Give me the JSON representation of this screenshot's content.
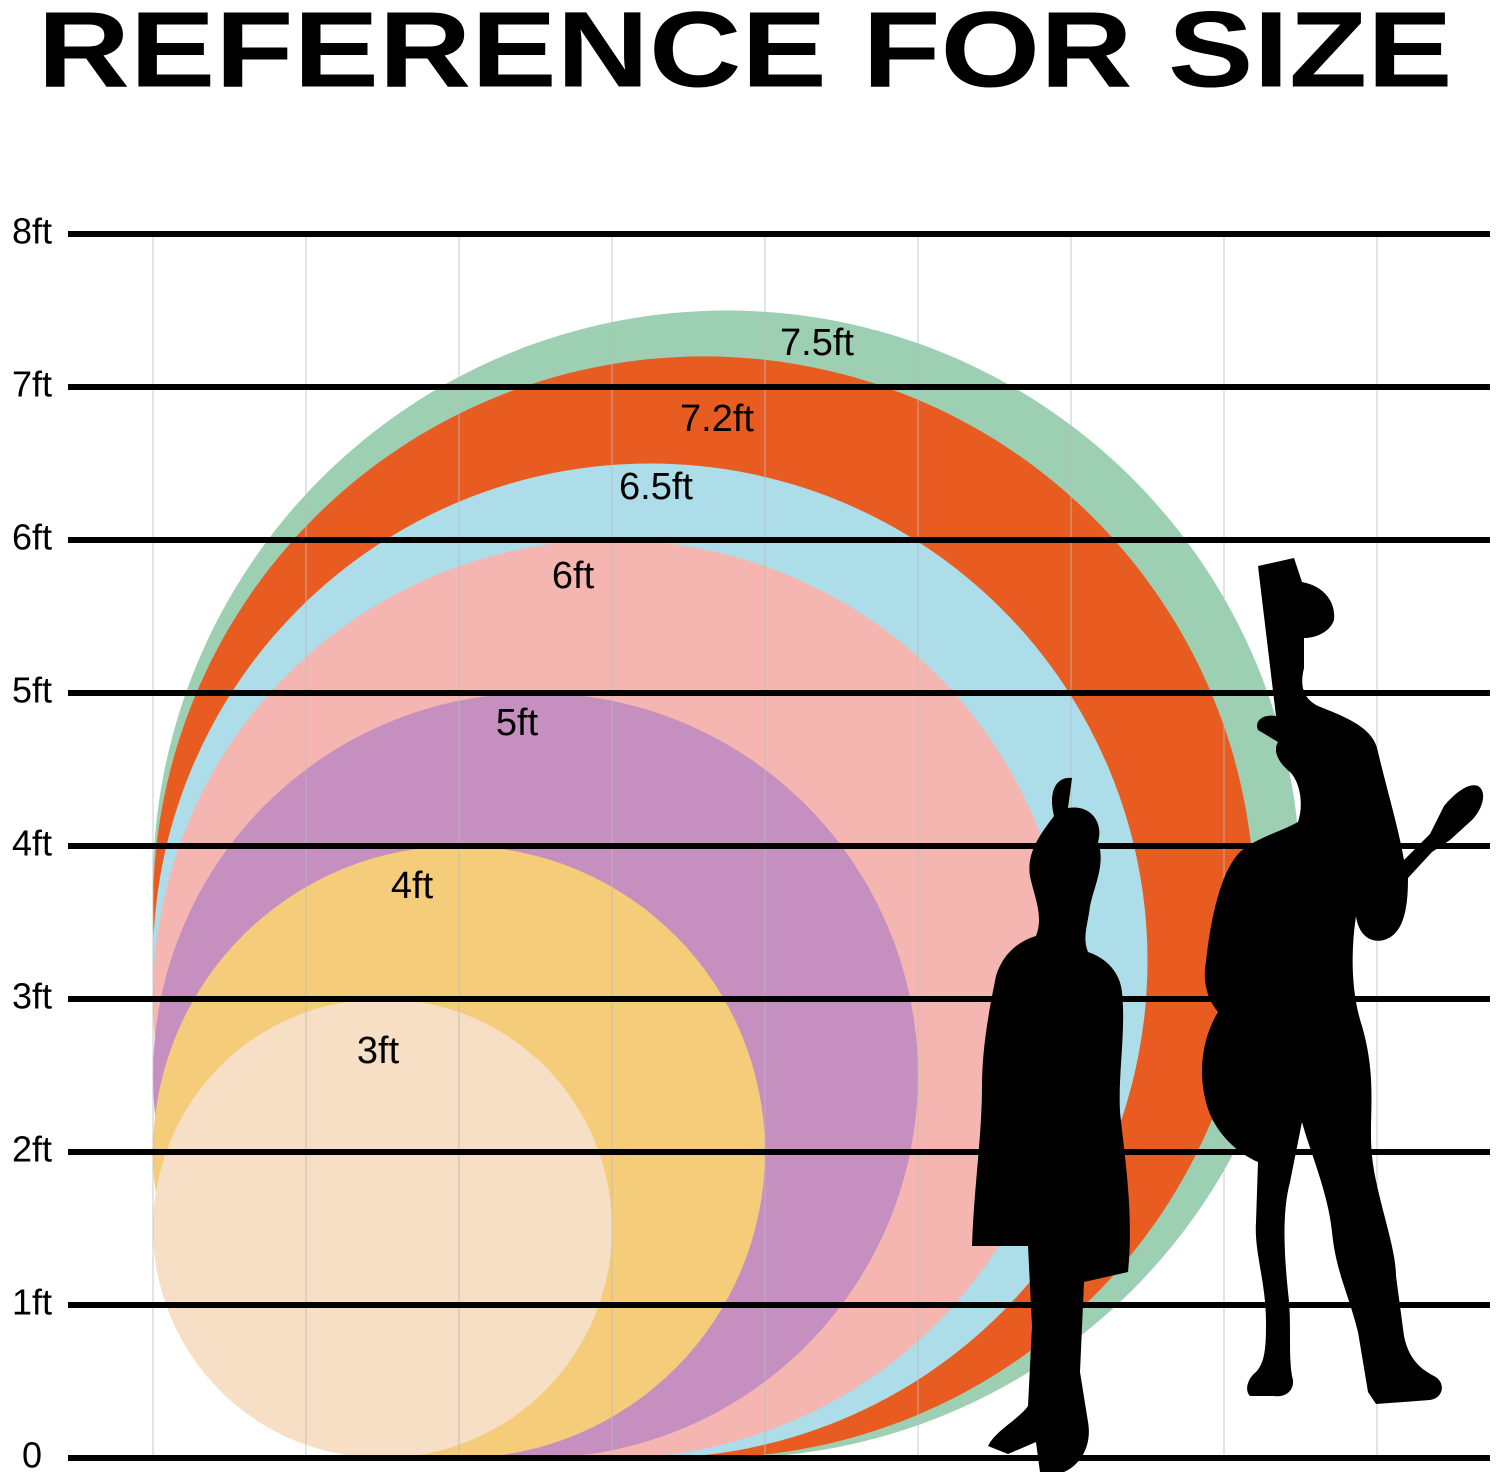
{
  "header": {
    "title": "REFERENCE FOR SIZE"
  },
  "scale": {
    "ticks": [
      {
        "value": 8,
        "label": "8ft"
      },
      {
        "value": 7,
        "label": "7ft"
      },
      {
        "value": 6,
        "label": "6ft"
      },
      {
        "value": 5,
        "label": "5ft"
      },
      {
        "value": 4,
        "label": "4ft"
      },
      {
        "value": 3,
        "label": "3ft"
      },
      {
        "value": 2,
        "label": "2ft"
      },
      {
        "value": 1,
        "label": "1ft"
      },
      {
        "value": 0,
        "label": "0"
      }
    ]
  },
  "circles": [
    {
      "label": "7.5ft",
      "diameter": 7.5,
      "color": "#9dcfb3"
    },
    {
      "label": "7.2ft",
      "diameter": 7.2,
      "color": "#e85c22"
    },
    {
      "label": "6.5ft",
      "diameter": 6.5,
      "color": "#acdde8"
    },
    {
      "label": "6ft",
      "diameter": 6,
      "color": "#f5b6b1"
    },
    {
      "label": "5ft",
      "diameter": 5,
      "color": "#c58fc0"
    },
    {
      "label": "4ft",
      "diameter": 4,
      "color": "#f5cc7a"
    },
    {
      "label": "3ft",
      "diameter": 3,
      "color": "#f6dfc4"
    }
  ]
}
